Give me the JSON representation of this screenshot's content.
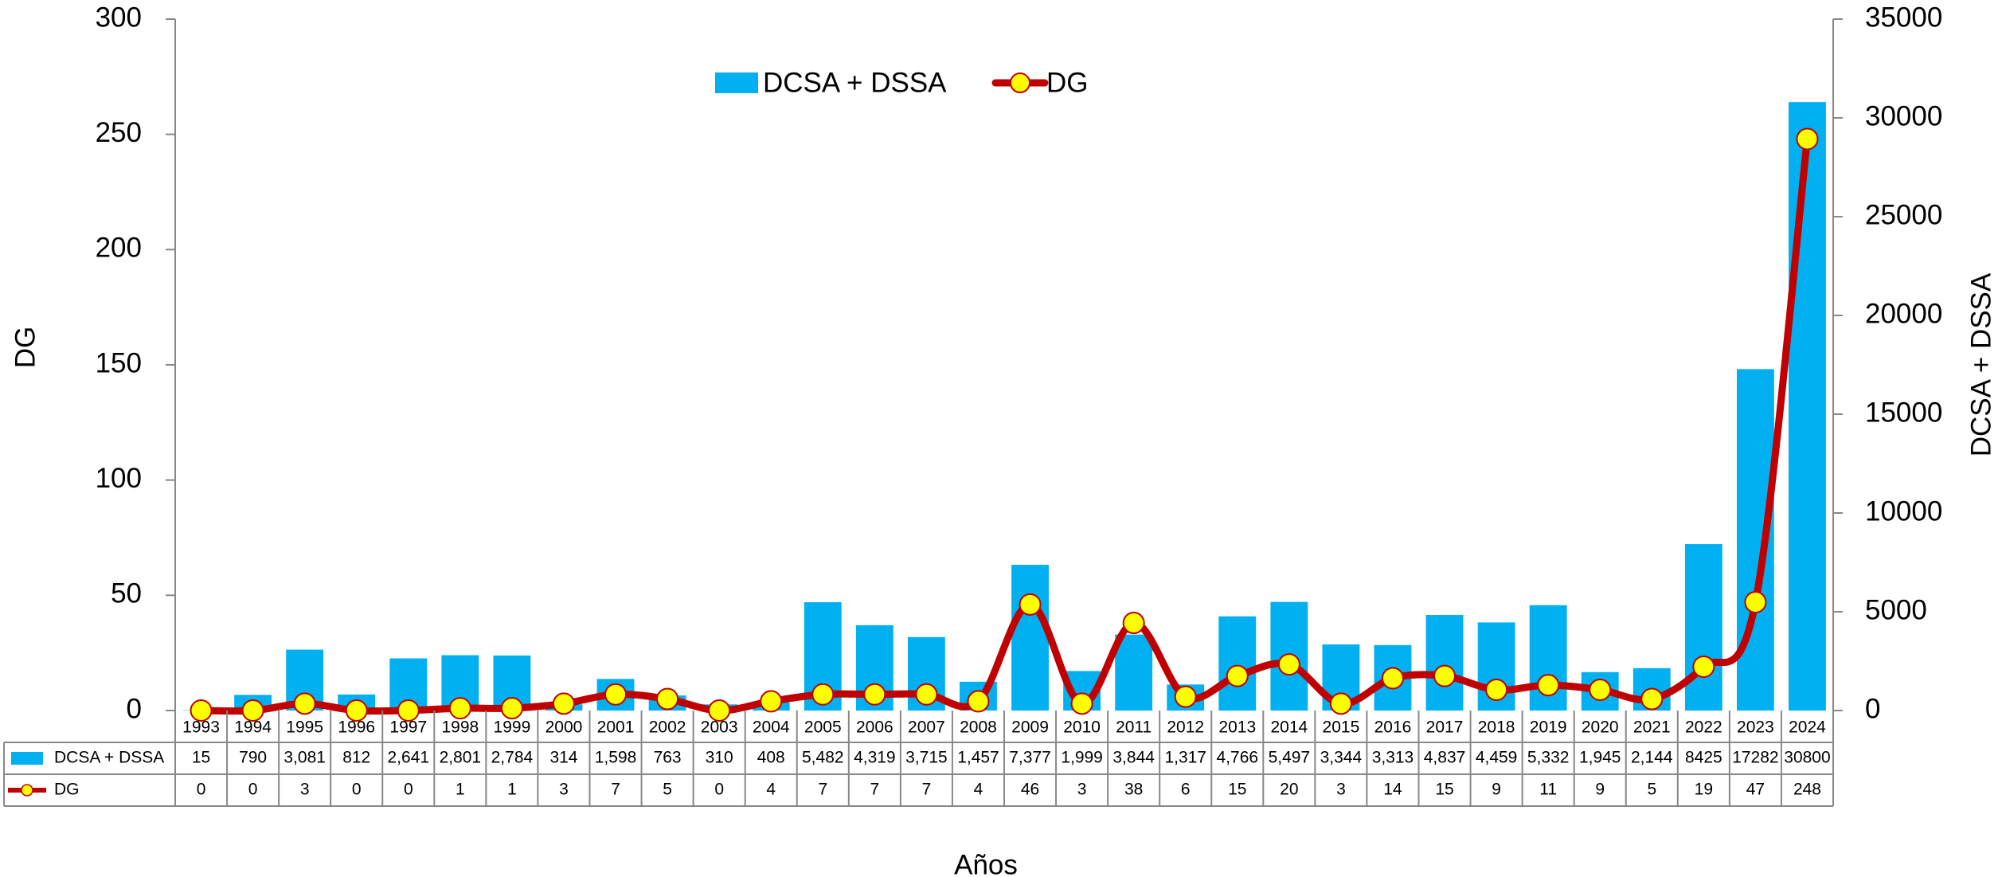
{
  "chart_data": {
    "type": "bar-line",
    "x_label": "Años",
    "y_label": "DG",
    "y2_label": "DCSA + DSSA",
    "categories": [
      "1993",
      "1994",
      "1995",
      "1996",
      "1997",
      "1998",
      "1999",
      "2000",
      "2001",
      "2002",
      "2003",
      "2004",
      "2005",
      "2006",
      "2007",
      "2008",
      "2009",
      "2010",
      "2011",
      "2012",
      "2013",
      "2014",
      "2015",
      "2016",
      "2017",
      "2018",
      "2019",
      "2020",
      "2021",
      "2022",
      "2023",
      "2024"
    ],
    "series": [
      {
        "name": "DCSA + DSSA",
        "type": "bar",
        "axis": "y2",
        "color": "#00b0f0",
        "values": [
          15,
          790,
          3081,
          812,
          2641,
          2801,
          2784,
          314,
          1598,
          763,
          310,
          408,
          5482,
          4319,
          3715,
          1457,
          7377,
          1999,
          3844,
          1317,
          4766,
          5497,
          3344,
          3313,
          4837,
          4459,
          5332,
          1945,
          2144,
          8425,
          17282,
          30800
        ],
        "value_labels": [
          "15",
          "790",
          "3,081",
          "812",
          "2,641",
          "2,801",
          "2,784",
          "314",
          "1,598",
          "763",
          "310",
          "408",
          "5,482",
          "4,319",
          "3,715",
          "1,457",
          "7,377",
          "1,999",
          "3,844",
          "1,317",
          "4,766",
          "5,497",
          "3,344",
          "3,313",
          "4,837",
          "4,459",
          "5,332",
          "1,945",
          "2,144",
          "8425",
          "17282",
          "30800"
        ]
      },
      {
        "name": "DG",
        "type": "line",
        "color": "#c00000",
        "marker_color": "#ffff00",
        "values": [
          0,
          0,
          3,
          0,
          0,
          1,
          1,
          3,
          7,
          5,
          0,
          4,
          7,
          7,
          7,
          4,
          46,
          3,
          38,
          6,
          15,
          20,
          3,
          14,
          15,
          9,
          11,
          9,
          5,
          19,
          47,
          248
        ]
      }
    ],
    "ylim": [
      0,
      300
    ],
    "yticks": [
      0,
      50,
      100,
      150,
      200,
      250,
      300
    ],
    "y2lim": [
      0,
      35000
    ],
    "y2ticks": [
      0,
      5000,
      10000,
      15000,
      20000,
      25000,
      30000,
      35000
    ],
    "legend": "top",
    "grid": false
  }
}
